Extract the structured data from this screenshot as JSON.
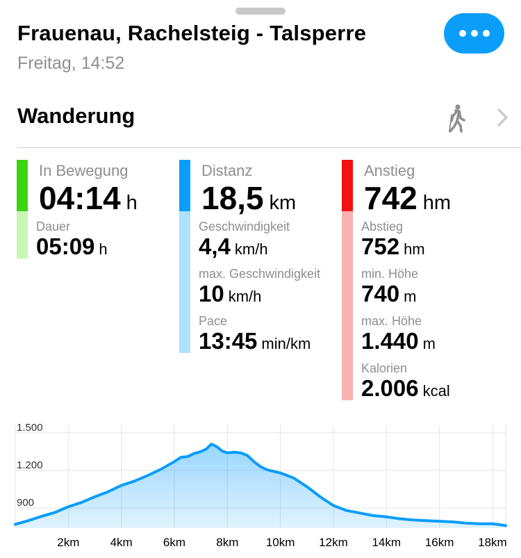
{
  "header": {
    "title": "Frauenau, Rachelsteig - Talsperre",
    "subtitle": "Freitag, 14:52"
  },
  "activity": {
    "label": "Wanderung",
    "icon": "hiker-icon"
  },
  "metrics": {
    "moving": {
      "label": "In Bewegung",
      "value": "04:14",
      "unit": "h",
      "color": "#3cd40f",
      "light": "#c9f5b5"
    },
    "duration": {
      "label": "Dauer",
      "value": "05:09",
      "unit": "h"
    },
    "distance": {
      "label": "Distanz",
      "value": "18,5",
      "unit": "km",
      "color": "#0a9dfa",
      "light": "#ade3fb"
    },
    "speed": {
      "label": "Geschwindigkeit",
      "value": "4,4",
      "unit": "km/h"
    },
    "max_speed": {
      "label": "max. Geschwindigkeit",
      "value": "10",
      "unit": "km/h"
    },
    "pace": {
      "label": "Pace",
      "value": "13:45",
      "unit": "min/km"
    },
    "ascent": {
      "label": "Anstieg",
      "value": "742",
      "unit": "hm",
      "color": "#f21111",
      "light": "#f9b1b1"
    },
    "descent": {
      "label": "Abstieg",
      "value": "752",
      "unit": "hm"
    },
    "min_alt": {
      "label": "min. Höhe",
      "value": "740",
      "unit": "m"
    },
    "max_alt": {
      "label": "max. Höhe",
      "value": "1.440",
      "unit": "m"
    },
    "calories": {
      "label": "Kalorien",
      "value": "2.006",
      "unit": "kcal"
    }
  },
  "chart_data": {
    "type": "area",
    "y_ticks": [
      900,
      1200,
      1500
    ],
    "y_tick_labels": [
      "900",
      "1.200",
      "1.500"
    ],
    "x_ticks": [
      2,
      4,
      6,
      8,
      10,
      12,
      14,
      16,
      18
    ],
    "x_tick_labels": [
      "2km",
      "4km",
      "6km",
      "8km",
      "10km",
      "12km",
      "14km",
      "16km",
      "18km"
    ],
    "xlim": [
      0,
      18.5
    ],
    "ylim": [
      740,
      1560
    ],
    "color": "#0a9dfa",
    "x": [
      0,
      0.5,
      1,
      1.5,
      2,
      2.5,
      3,
      3.5,
      4,
      4.5,
      5,
      5.5,
      6,
      6.25,
      6.5,
      6.75,
      7,
      7.2,
      7.4,
      7.6,
      7.8,
      8,
      8.25,
      8.5,
      8.75,
      9,
      9.25,
      9.5,
      10,
      10.5,
      11,
      11.5,
      12,
      12.5,
      13,
      13.5,
      14,
      14.5,
      15,
      15.5,
      16,
      16.5,
      17,
      17.5,
      18,
      18.5
    ],
    "y": [
      770,
      800,
      835,
      865,
      910,
      945,
      990,
      1030,
      1080,
      1115,
      1160,
      1210,
      1270,
      1305,
      1310,
      1335,
      1350,
      1370,
      1410,
      1390,
      1355,
      1340,
      1345,
      1340,
      1320,
      1270,
      1230,
      1205,
      1180,
      1140,
      1070,
      990,
      920,
      880,
      860,
      840,
      830,
      815,
      805,
      800,
      795,
      790,
      780,
      775,
      775,
      760
    ]
  }
}
